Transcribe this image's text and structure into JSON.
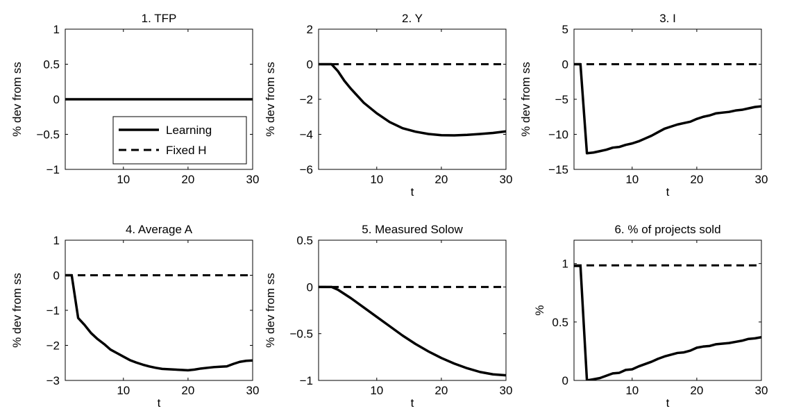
{
  "chart_data": [
    {
      "type": "line",
      "title": "1. TFP",
      "xlabel": "",
      "ylabel": "% dev from ss",
      "xlim": [
        1,
        30
      ],
      "ylim": [
        -1,
        1
      ],
      "xticks": [
        10,
        20,
        30
      ],
      "xtick_labels": [
        "10",
        "20",
        "30"
      ],
      "yticks": [
        -1,
        -0.5,
        0,
        0.5,
        1
      ],
      "ytick_labels": [
        "−1",
        "−0.5",
        "0",
        "0.5",
        "1"
      ],
      "legend": {
        "position": "lower-right",
        "entries": [
          "Learning",
          "Fixed H"
        ]
      },
      "series": [
        {
          "name": "Learning",
          "style": "solid",
          "x": [
            1,
            30
          ],
          "y": [
            0,
            0
          ]
        },
        {
          "name": "Fixed H",
          "style": "dashed",
          "x": [
            1,
            30
          ],
          "y": [
            0,
            0
          ]
        }
      ]
    },
    {
      "type": "line",
      "title": "2. Y",
      "xlabel": "t",
      "ylabel": "% dev from ss",
      "xlim": [
        1,
        30
      ],
      "ylim": [
        -6,
        2
      ],
      "xticks": [
        10,
        20,
        30
      ],
      "xtick_labels": [
        "10",
        "20",
        "30"
      ],
      "yticks": [
        -6,
        -4,
        -2,
        0,
        2
      ],
      "ytick_labels": [
        "−6",
        "−4",
        "−2",
        "0",
        "2"
      ],
      "series": [
        {
          "name": "Learning",
          "style": "solid",
          "x": [
            1,
            3,
            4,
            5,
            6,
            8,
            10,
            12,
            14,
            16,
            18,
            20,
            22,
            24,
            26,
            28,
            30
          ],
          "y": [
            0,
            0,
            -0.4,
            -0.95,
            -1.4,
            -2.2,
            -2.8,
            -3.3,
            -3.65,
            -3.85,
            -3.98,
            -4.05,
            -4.06,
            -4.03,
            -3.98,
            -3.92,
            -3.83
          ]
        },
        {
          "name": "Fixed H",
          "style": "dashed",
          "x": [
            1,
            30
          ],
          "y": [
            0,
            0
          ]
        }
      ]
    },
    {
      "type": "line",
      "title": "3. I",
      "xlabel": "t",
      "ylabel": "% dev from ss",
      "xlim": [
        1,
        30
      ],
      "ylim": [
        -15,
        5
      ],
      "xticks": [
        10,
        20,
        30
      ],
      "xtick_labels": [
        "10",
        "20",
        "30"
      ],
      "yticks": [
        -15,
        -10,
        -5,
        0,
        5
      ],
      "ytick_labels": [
        "−15",
        "−10",
        "−5",
        "0",
        "5"
      ],
      "series": [
        {
          "name": "Learning",
          "style": "solid",
          "x": [
            1,
            2,
            3,
            4,
            5,
            6,
            7,
            8,
            9,
            10,
            11,
            12,
            13,
            14,
            15,
            16,
            17,
            18,
            19,
            20,
            21,
            22,
            23,
            24,
            25,
            26,
            27,
            28,
            29,
            30
          ],
          "y": [
            0,
            0,
            -12.7,
            -12.6,
            -12.4,
            -12.2,
            -11.9,
            -11.8,
            -11.5,
            -11.3,
            -11.0,
            -10.6,
            -10.2,
            -9.7,
            -9.2,
            -8.9,
            -8.6,
            -8.4,
            -8.2,
            -7.8,
            -7.5,
            -7.3,
            -7.0,
            -6.9,
            -6.8,
            -6.6,
            -6.5,
            -6.3,
            -6.1,
            -6.0
          ]
        },
        {
          "name": "Fixed H",
          "style": "dashed",
          "x": [
            1,
            30
          ],
          "y": [
            0,
            0
          ]
        }
      ]
    },
    {
      "type": "line",
      "title": "4. Average A",
      "xlabel": "t",
      "ylabel": "% dev from ss",
      "xlim": [
        1,
        30
      ],
      "ylim": [
        -3,
        1
      ],
      "xticks": [
        10,
        20,
        30
      ],
      "xtick_labels": [
        "10",
        "20",
        "30"
      ],
      "yticks": [
        -3,
        -2,
        -1,
        0,
        1
      ],
      "ytick_labels": [
        "−3",
        "−2",
        "−1",
        "0",
        "1"
      ],
      "series": [
        {
          "name": "Learning",
          "style": "solid",
          "x": [
            1,
            2,
            3,
            4,
            5,
            6,
            7,
            8,
            9,
            10,
            11,
            12,
            13,
            14,
            15,
            16,
            17,
            18,
            19,
            20,
            21,
            22,
            23,
            24,
            25,
            26,
            27,
            28,
            29,
            30
          ],
          "y": [
            0,
            0,
            -1.22,
            -1.42,
            -1.65,
            -1.82,
            -1.96,
            -2.12,
            -2.22,
            -2.32,
            -2.42,
            -2.49,
            -2.55,
            -2.6,
            -2.64,
            -2.67,
            -2.68,
            -2.69,
            -2.7,
            -2.71,
            -2.69,
            -2.66,
            -2.64,
            -2.62,
            -2.61,
            -2.6,
            -2.53,
            -2.47,
            -2.44,
            -2.43
          ]
        },
        {
          "name": "Fixed H",
          "style": "dashed",
          "x": [
            1,
            30
          ],
          "y": [
            0,
            0
          ]
        }
      ]
    },
    {
      "type": "line",
      "title": "5. Measured Solow",
      "xlabel": "t",
      "ylabel": "% dev from ss",
      "xlim": [
        1,
        30
      ],
      "ylim": [
        -1,
        0.5
      ],
      "xticks": [
        10,
        20,
        30
      ],
      "xtick_labels": [
        "10",
        "20",
        "30"
      ],
      "yticks": [
        -1,
        -0.5,
        0,
        0.5
      ],
      "ytick_labels": [
        "−1",
        "−0.5",
        "0",
        "0.5"
      ],
      "series": [
        {
          "name": "Learning",
          "style": "solid",
          "x": [
            1,
            3,
            4,
            6,
            8,
            10,
            12,
            14,
            16,
            18,
            20,
            22,
            24,
            26,
            28,
            30
          ],
          "y": [
            0,
            0,
            -0.03,
            -0.12,
            -0.22,
            -0.32,
            -0.42,
            -0.52,
            -0.61,
            -0.69,
            -0.76,
            -0.82,
            -0.87,
            -0.91,
            -0.935,
            -0.945
          ]
        },
        {
          "name": "Fixed H",
          "style": "dashed",
          "x": [
            1,
            30
          ],
          "y": [
            0,
            0
          ]
        }
      ]
    },
    {
      "type": "line",
      "title": "6. % of projects sold",
      "xlabel": "t",
      "ylabel": "%",
      "xlim": [
        1,
        30
      ],
      "ylim": [
        0,
        1.2
      ],
      "xticks": [
        10,
        20,
        30
      ],
      "xtick_labels": [
        "10",
        "20",
        "30"
      ],
      "yticks": [
        0,
        0.5,
        1
      ],
      "ytick_labels": [
        "0",
        "0.5",
        "1"
      ],
      "series": [
        {
          "name": "Learning",
          "style": "solid",
          "x": [
            1,
            2,
            3,
            4,
            5,
            6,
            7,
            8,
            9,
            10,
            11,
            12,
            13,
            14,
            15,
            16,
            17,
            18,
            19,
            20,
            21,
            22,
            23,
            24,
            25,
            26,
            27,
            28,
            29,
            30
          ],
          "y": [
            0.98,
            0.98,
            0,
            0.01,
            0.02,
            0.04,
            0.06,
            0.065,
            0.09,
            0.095,
            0.12,
            0.14,
            0.16,
            0.185,
            0.205,
            0.22,
            0.235,
            0.24,
            0.255,
            0.28,
            0.29,
            0.295,
            0.31,
            0.315,
            0.32,
            0.33,
            0.34,
            0.355,
            0.36,
            0.37
          ]
        },
        {
          "name": "Fixed H",
          "style": "dashed",
          "x": [
            1,
            30
          ],
          "y": [
            0.985,
            0.985
          ]
        }
      ]
    }
  ]
}
